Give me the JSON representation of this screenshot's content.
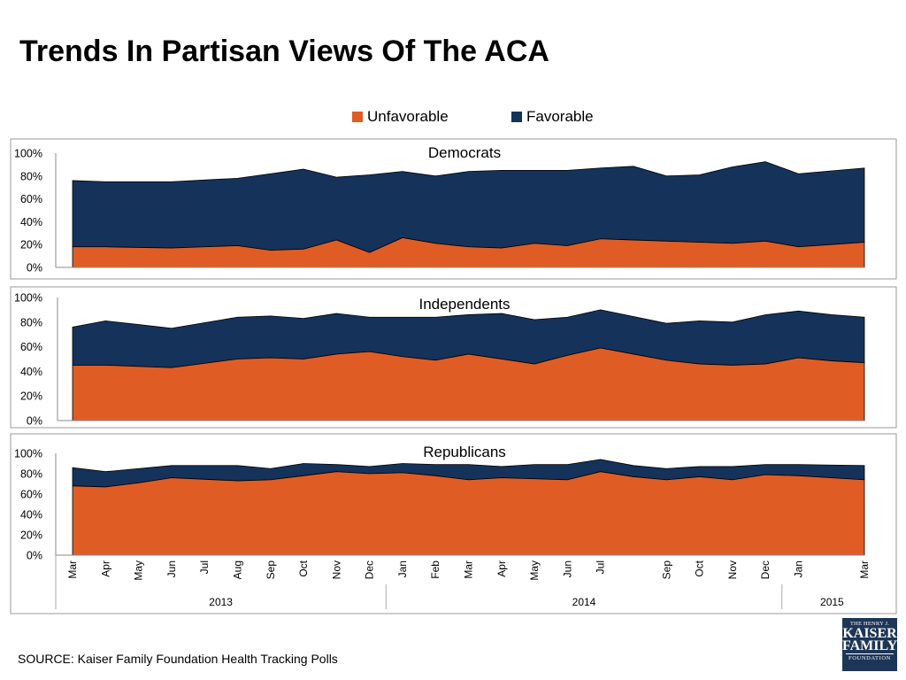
{
  "title": "Trends In Partisan Views Of The ACA",
  "source": "SOURCE: Kaiser Family Foundation Health Tracking Polls",
  "logo": {
    "line1": "THE HENRY J.",
    "line2": "KAISER",
    "line3": "FAMILY",
    "line4": "FOUNDATION"
  },
  "colors": {
    "unfavorable": "#e05c25",
    "favorable": "#15325a",
    "frame": "#999999"
  },
  "chart_data": {
    "type": "area",
    "stacking": "overlay",
    "legend": {
      "placement": "top-center",
      "items": [
        {
          "label": "Unfavorable",
          "color": "#e05c25"
        },
        {
          "label": "Favorable",
          "color": "#15325a"
        }
      ]
    },
    "x_labels": [
      "Mar",
      "Apr",
      "May",
      "Jun",
      "Jul",
      "Aug",
      "Sep",
      "Oct",
      "Nov",
      "Dec",
      "Jan",
      "Feb",
      "Mar",
      "Apr",
      "May",
      "Jun",
      "Jul",
      "",
      "Sep",
      "Oct",
      "Nov",
      "Dec",
      "Jan",
      "",
      "Mar"
    ],
    "x_groups": [
      {
        "label": "2013",
        "start": 0,
        "end": 9
      },
      {
        "label": "2014",
        "start": 10,
        "end": 21
      },
      {
        "label": "2015",
        "start": 22,
        "end": 24
      }
    ],
    "y_ticks": [
      "0%",
      "20%",
      "40%",
      "60%",
      "80%",
      "100%"
    ],
    "ylim": [
      0,
      100
    ],
    "panels": [
      {
        "title": "Democrats",
        "unfavorable": [
          18,
          18,
          17.5,
          17,
          18,
          19,
          15,
          16,
          24,
          13,
          26,
          21,
          18,
          17,
          21,
          19,
          25,
          24,
          23,
          22,
          21,
          23,
          18,
          20,
          22
        ],
        "total": [
          76,
          75,
          75,
          75,
          76.5,
          78,
          82,
          86,
          79,
          81,
          84,
          80,
          84,
          85,
          85,
          85,
          87,
          88.5,
          80,
          81,
          88,
          92.5,
          82,
          84.5,
          87
        ]
      },
      {
        "title": "Independents",
        "unfavorable": [
          45,
          45,
          44,
          43,
          46.5,
          50,
          51,
          50,
          54,
          56,
          52,
          49,
          54,
          50,
          46,
          53,
          59,
          54,
          49,
          46,
          45,
          46,
          51,
          48.5,
          47
        ],
        "total": [
          76,
          81,
          78,
          75,
          79.5,
          84,
          85,
          83,
          87,
          84,
          84,
          84,
          86,
          87,
          82,
          84,
          90,
          84.5,
          79,
          81,
          80,
          86,
          89,
          86,
          84
        ]
      },
      {
        "title": "Republicans",
        "unfavorable": [
          68,
          67,
          71,
          76,
          74.5,
          73,
          74,
          78,
          82,
          80,
          81,
          78,
          74,
          76,
          75,
          74,
          82,
          77,
          74,
          77,
          74,
          79,
          78,
          76,
          74
        ],
        "total": [
          86,
          82,
          85,
          88,
          88,
          88,
          85,
          90,
          89,
          87,
          90,
          89,
          89,
          87,
          89,
          89,
          94,
          88,
          85,
          87,
          87,
          89,
          89,
          88.5,
          88
        ]
      }
    ]
  }
}
